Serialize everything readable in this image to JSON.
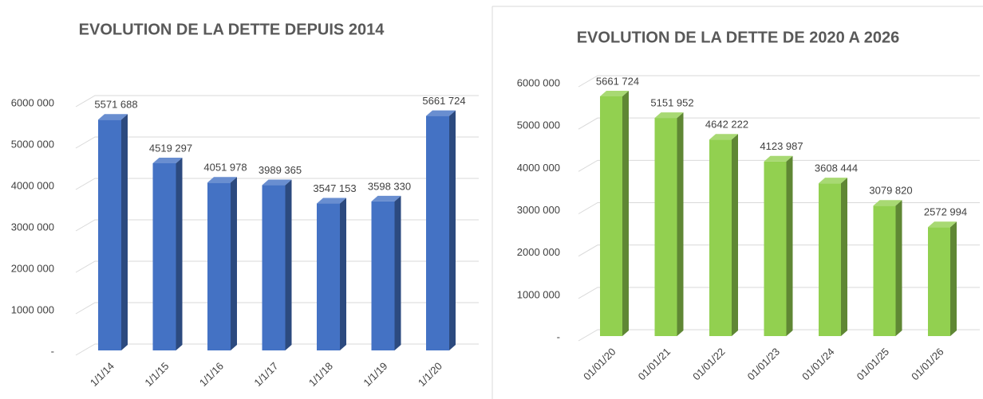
{
  "chart_data": [
    {
      "type": "bar3d",
      "title": "EVOLUTION DE LA DETTE DEPUIS 2014",
      "categories": [
        "1/1/14",
        "1/1/15",
        "1/1/16",
        "1/1/17",
        "1/1/18",
        "1/1/19",
        "1/1/20"
      ],
      "values": [
        5571688,
        4519297,
        4051978,
        3989365,
        3547153,
        3598330,
        5661724
      ],
      "value_labels": [
        "5571 688",
        "4519 297",
        "4051 978",
        "3989 365",
        "3547 153",
        "3598 330",
        "5661 724"
      ],
      "color": "#4472c4",
      "ylim": [
        0,
        6000000
      ],
      "yticks": [
        {
          "value": 0,
          "label": "-"
        },
        {
          "value": 1000000,
          "label": "1000 000"
        },
        {
          "value": 2000000,
          "label": "2000 000"
        },
        {
          "value": 3000000,
          "label": "3000 000"
        },
        {
          "value": 4000000,
          "label": "4000 000"
        },
        {
          "value": 5000000,
          "label": "5000 000"
        },
        {
          "value": 6000000,
          "label": "6000 000"
        }
      ],
      "grid": true
    },
    {
      "type": "bar3d",
      "title": "EVOLUTION DE LA DETTE DE 2020 A 2026",
      "categories": [
        "01/01/20",
        "01/01/21",
        "01/01/22",
        "01/01/23",
        "01/01/24",
        "01/01/25",
        "01/01/26"
      ],
      "values": [
        5661724,
        5151952,
        4642222,
        4123987,
        3608444,
        3079820,
        2572994
      ],
      "value_labels": [
        "5661 724",
        "5151 952",
        "4642 222",
        "4123 987",
        "3608 444",
        "3079 820",
        "2572 994"
      ],
      "color": "#92d050",
      "ylim": [
        0,
        6000000
      ],
      "yticks": [
        {
          "value": 0,
          "label": "-"
        },
        {
          "value": 1000000,
          "label": "1000 000"
        },
        {
          "value": 2000000,
          "label": "2000 000"
        },
        {
          "value": 3000000,
          "label": "3000 000"
        },
        {
          "value": 4000000,
          "label": "4000 000"
        },
        {
          "value": 5000000,
          "label": "5000 000"
        },
        {
          "value": 6000000,
          "label": "6000 000"
        }
      ],
      "grid": true
    }
  ]
}
